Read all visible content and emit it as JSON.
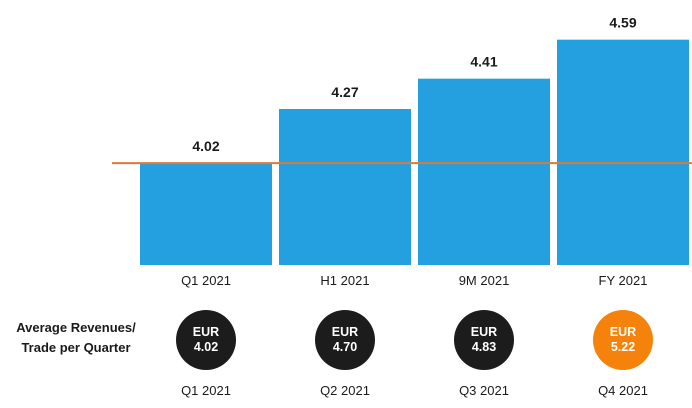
{
  "chart_data": {
    "type": "bar",
    "categories": [
      "Q1 2021",
      "H1 2021",
      "9M 2021",
      "FY 2021"
    ],
    "values": [
      4.02,
      4.27,
      4.41,
      4.59
    ],
    "value_labels": [
      "4.02",
      "4.27",
      "4.41",
      "4.59"
    ],
    "reference_line": 4.02,
    "ylim": [
      3.55,
      4.63
    ],
    "colors": {
      "bar": "#24a0e0",
      "reference_line": "#e07a30"
    }
  },
  "quarterly": {
    "row_label_line1": "Average Revenues/",
    "row_label_line2": "Trade per Quarter",
    "items": [
      {
        "currency": "EUR",
        "value": "4.02",
        "quarter": "Q1 2021",
        "highlight": false
      },
      {
        "currency": "EUR",
        "value": "4.70",
        "quarter": "Q2 2021",
        "highlight": false
      },
      {
        "currency": "EUR",
        "value": "4.83",
        "quarter": "Q3 2021",
        "highlight": false
      },
      {
        "currency": "EUR",
        "value": "5.22",
        "quarter": "Q4 2021",
        "highlight": true
      }
    ],
    "colors": {
      "circle": "#1c1c1c",
      "highlight": "#f5820a"
    }
  }
}
